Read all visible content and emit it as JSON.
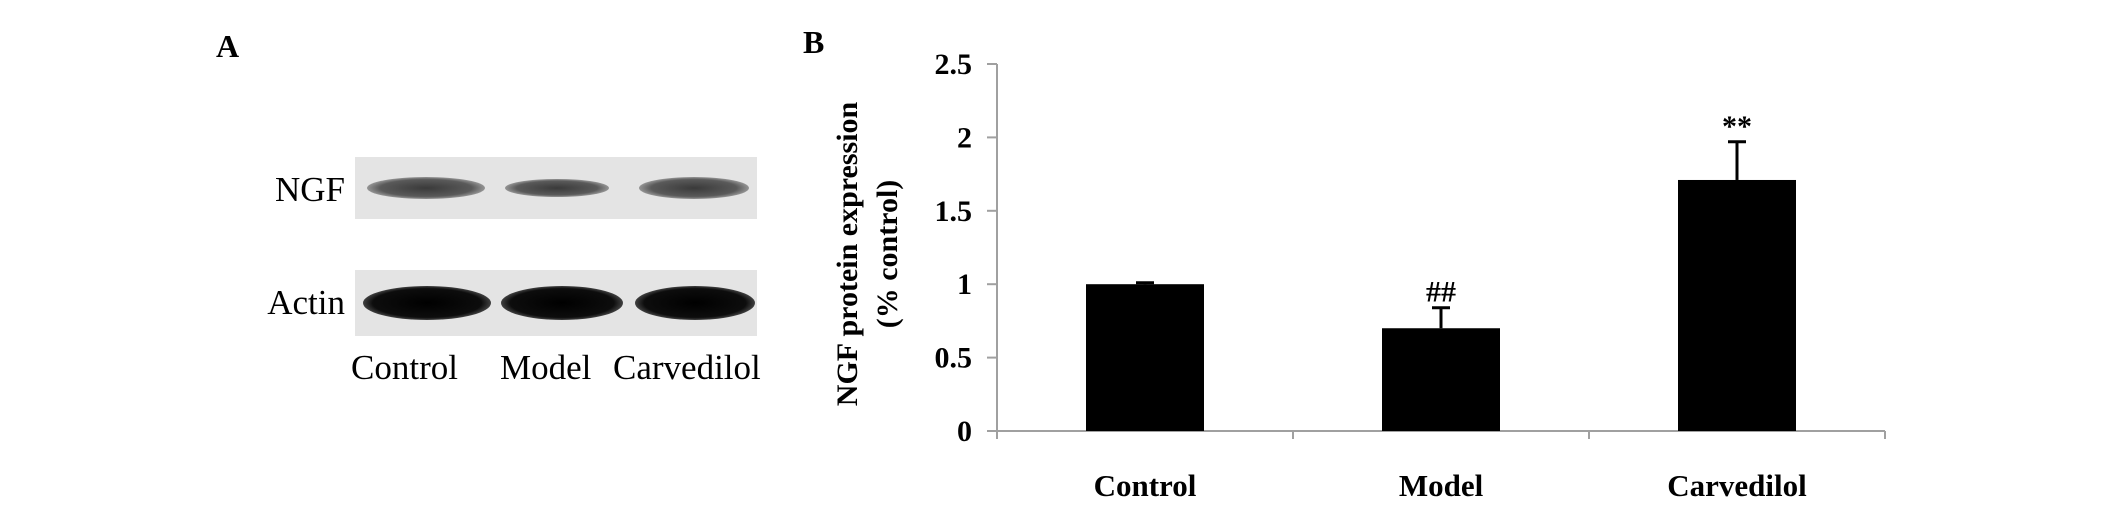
{
  "panel_a": {
    "label": "A",
    "rows": [
      "NGF",
      "Actin"
    ],
    "lanes": [
      "Control",
      "Model",
      "Carvedilol"
    ]
  },
  "panel_b": {
    "label": "B"
  },
  "chart_data": {
    "type": "bar",
    "categories": [
      "Control",
      "Model",
      "Carvedilol"
    ],
    "values": [
      1.0,
      0.7,
      1.71
    ],
    "error_bars": [
      0.01,
      0.14,
      0.26
    ],
    "annotations": [
      "",
      "##",
      "**"
    ],
    "ylabel_line1": "NGF protein expression",
    "ylabel_line2": "(% control)",
    "yticks": [
      "0",
      "0.5",
      "1",
      "1.5",
      "2",
      "2.5"
    ],
    "ylim": [
      0,
      2.5
    ],
    "grid": false,
    "colors": {
      "bar": "#000000",
      "axis": "#a0a0a0"
    }
  }
}
